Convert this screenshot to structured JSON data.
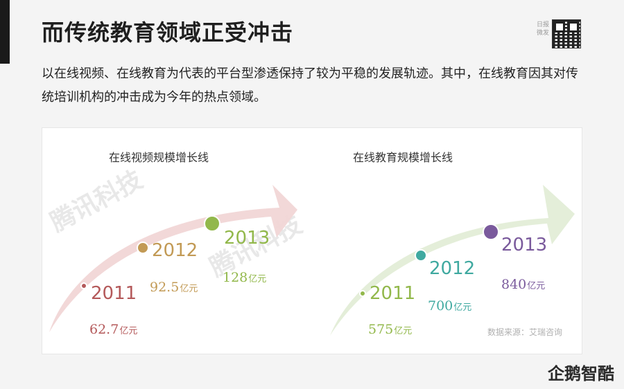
{
  "slide": {
    "title": "而传统教育领域正受冲击",
    "description": "以在线视频、在线教育为代表的平台型渗透保持了较为平稳的发展轨迹。其中，在线教育因其对传统培训机构的冲击成为今年的热点领域。",
    "qr_label": "日报 微发",
    "source_note": "数据来源：艾瑞咨询",
    "brand_logo": "企鹅智酷",
    "watermark": "腾讯科技"
  },
  "chart_data": [
    {
      "type": "scatter",
      "title": "在线视频规模增长线",
      "unit": "亿元",
      "arrow_color": "#f1d6d6",
      "points": [
        {
          "year": "2011",
          "value": 62.7,
          "value_label": "62.7",
          "color": "#b4595a"
        },
        {
          "year": "2012",
          "value": 92.5,
          "value_label": "92.5",
          "color": "#c29a55"
        },
        {
          "year": "2013",
          "value": 128,
          "value_label": "128",
          "color": "#92b84b"
        }
      ]
    },
    {
      "type": "scatter",
      "title": "在线教育规模增长线",
      "unit": "亿元",
      "arrow_color": "#e3edd7",
      "points": [
        {
          "year": "2011",
          "value": 575,
          "value_label": "575",
          "color": "#92b84b"
        },
        {
          "year": "2012",
          "value": 700,
          "value_label": "700",
          "color": "#3fa9a0"
        },
        {
          "year": "2013",
          "value": 840,
          "value_label": "840",
          "color": "#7a5a9c"
        }
      ]
    }
  ]
}
